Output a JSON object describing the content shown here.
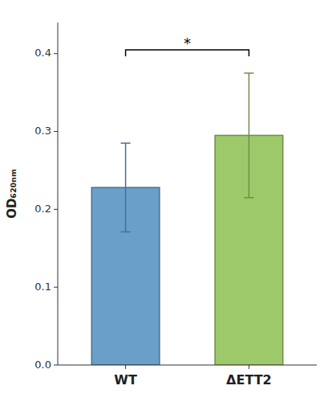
{
  "chart_data": {
    "type": "bar",
    "categories": [
      "WT",
      "ΔETT2"
    ],
    "values": [
      0.228,
      0.295
    ],
    "errors": [
      0.057,
      0.08
    ],
    "colors": [
      "#6A9FCA",
      "#9DC96A"
    ],
    "y_label": "OD₆₂₀ₙₘ",
    "ylim": [
      0,
      0.44
    ],
    "yticks": [
      {
        "value": 0.0,
        "label": "0.0"
      },
      0.1,
      0.2,
      0.3,
      0.4
    ],
    "annotations": [
      {
        "text": "*",
        "y": 0.405,
        "x_from": "WT",
        "x_to": "ΔETT2"
      }
    ],
    "grid": false
  }
}
